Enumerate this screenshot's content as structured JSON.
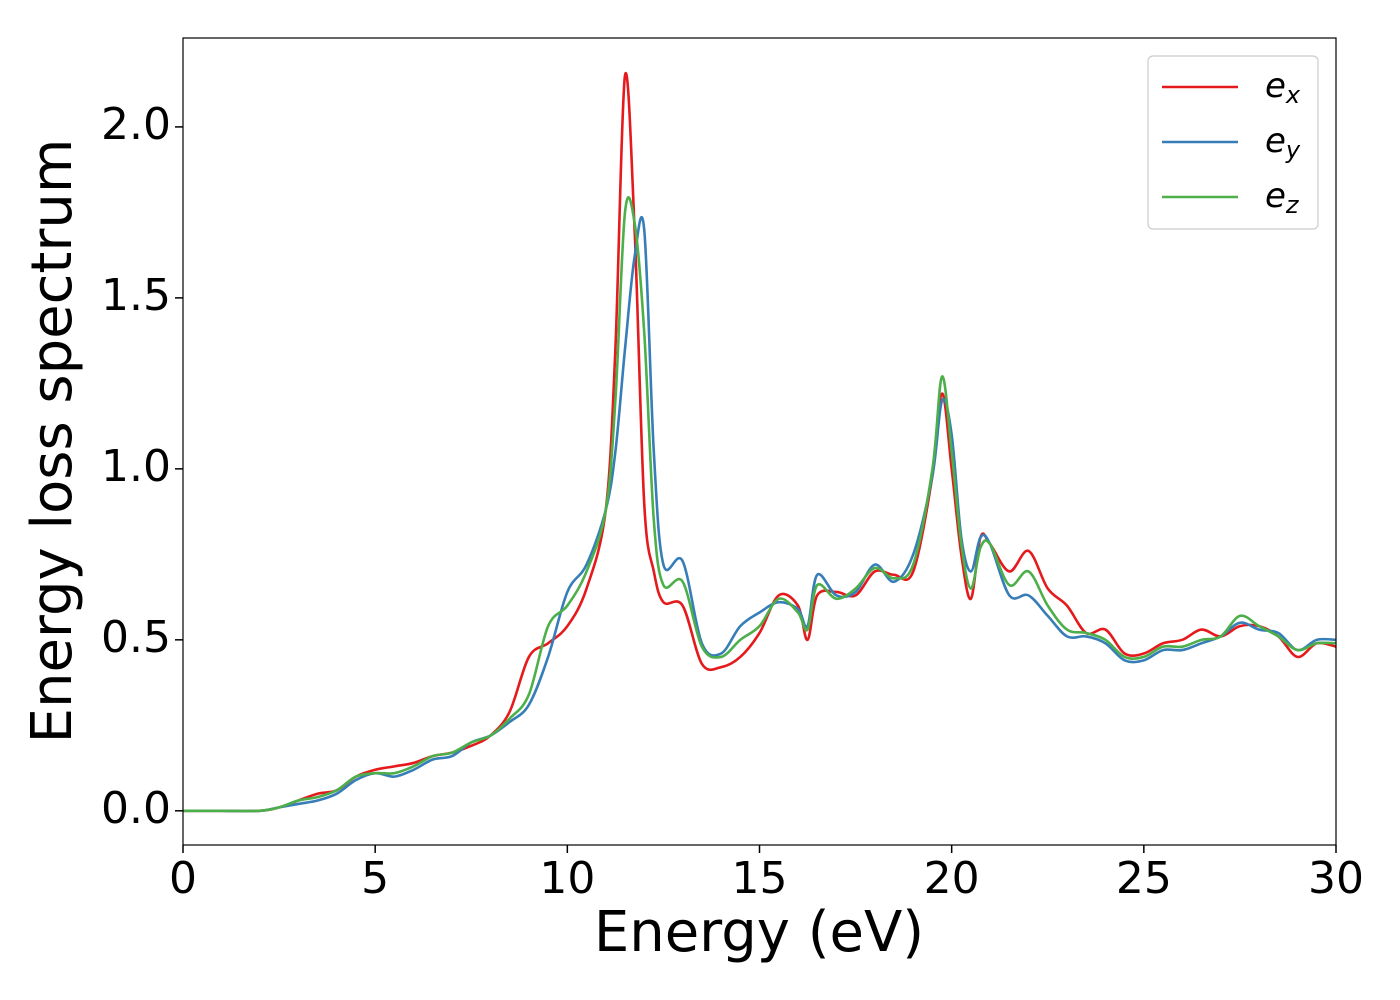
{
  "chart_data": {
    "type": "line",
    "xlabel": "Energy (eV)",
    "ylabel": "Energy loss spectrum",
    "x": [
      0,
      1,
      2,
      2.5,
      3,
      3.5,
      4,
      4.5,
      5,
      5.5,
      6,
      6.5,
      7,
      7.5,
      8,
      8.5,
      9,
      9.5,
      10,
      10.5,
      11,
      11.25,
      11.5,
      11.75,
      12,
      12.25,
      12.5,
      13,
      13.5,
      14,
      14.5,
      15,
      15.5,
      16,
      16.25,
      16.5,
      17,
      17.5,
      18,
      18.5,
      19,
      19.5,
      19.75,
      20,
      20.25,
      20.5,
      20.75,
      21,
      21.5,
      22,
      22.5,
      23,
      23.5,
      24,
      24.5,
      25,
      25.5,
      26,
      26.5,
      27,
      27.5,
      28,
      28.5,
      29,
      29.5,
      30
    ],
    "series": [
      {
        "name": "e_x",
        "color": "#e41a1c",
        "values": [
          0,
          0,
          0,
          0.01,
          0.03,
          0.05,
          0.06,
          0.1,
          0.12,
          0.13,
          0.14,
          0.16,
          0.17,
          0.19,
          0.22,
          0.29,
          0.45,
          0.49,
          0.54,
          0.65,
          0.88,
          1.35,
          2.15,
          1.7,
          0.9,
          0.7,
          0.61,
          0.6,
          0.43,
          0.42,
          0.45,
          0.52,
          0.63,
          0.6,
          0.5,
          0.63,
          0.64,
          0.63,
          0.7,
          0.69,
          0.7,
          0.98,
          1.22,
          1.0,
          0.75,
          0.62,
          0.8,
          0.78,
          0.7,
          0.76,
          0.65,
          0.6,
          0.52,
          0.53,
          0.46,
          0.46,
          0.49,
          0.5,
          0.53,
          0.51,
          0.54,
          0.54,
          0.51,
          0.45,
          0.49,
          0.48
        ]
      },
      {
        "name": "e_y",
        "color": "#377eb8",
        "values": [
          0,
          0,
          0,
          0.01,
          0.02,
          0.03,
          0.05,
          0.09,
          0.11,
          0.1,
          0.12,
          0.15,
          0.16,
          0.2,
          0.22,
          0.26,
          0.31,
          0.45,
          0.64,
          0.72,
          0.88,
          1.05,
          1.35,
          1.62,
          1.7,
          1.05,
          0.72,
          0.73,
          0.49,
          0.46,
          0.54,
          0.58,
          0.61,
          0.59,
          0.54,
          0.69,
          0.63,
          0.64,
          0.72,
          0.67,
          0.75,
          0.98,
          1.2,
          1.1,
          0.8,
          0.7,
          0.8,
          0.78,
          0.63,
          0.63,
          0.57,
          0.51,
          0.51,
          0.49,
          0.44,
          0.44,
          0.47,
          0.47,
          0.49,
          0.51,
          0.55,
          0.53,
          0.52,
          0.47,
          0.5,
          0.5
        ]
      },
      {
        "name": "e_z",
        "color": "#4daf4a",
        "values": [
          0,
          0,
          0,
          0.01,
          0.03,
          0.04,
          0.06,
          0.1,
          0.11,
          0.11,
          0.13,
          0.16,
          0.17,
          0.2,
          0.22,
          0.27,
          0.34,
          0.54,
          0.6,
          0.7,
          0.88,
          1.2,
          1.75,
          1.72,
          1.4,
          0.85,
          0.66,
          0.67,
          0.48,
          0.45,
          0.5,
          0.54,
          0.62,
          0.58,
          0.53,
          0.66,
          0.62,
          0.65,
          0.71,
          0.68,
          0.72,
          1.0,
          1.27,
          1.05,
          0.78,
          0.65,
          0.77,
          0.78,
          0.66,
          0.7,
          0.6,
          0.53,
          0.52,
          0.5,
          0.45,
          0.45,
          0.48,
          0.48,
          0.5,
          0.51,
          0.57,
          0.54,
          0.51,
          0.47,
          0.49,
          0.49
        ]
      }
    ],
    "xlim": [
      0,
      30
    ],
    "ylim": [
      -0.1,
      2.26
    ],
    "xticks": [
      0,
      5,
      10,
      15,
      20,
      25,
      30
    ],
    "yticks": [
      {
        "value": 0,
        "label": "0.0"
      },
      0.5,
      {
        "value": 1,
        "label": "1.0"
      },
      1.5,
      {
        "value": 2,
        "label": "2.0"
      }
    ],
    "grid": false,
    "legend": "upper right"
  }
}
